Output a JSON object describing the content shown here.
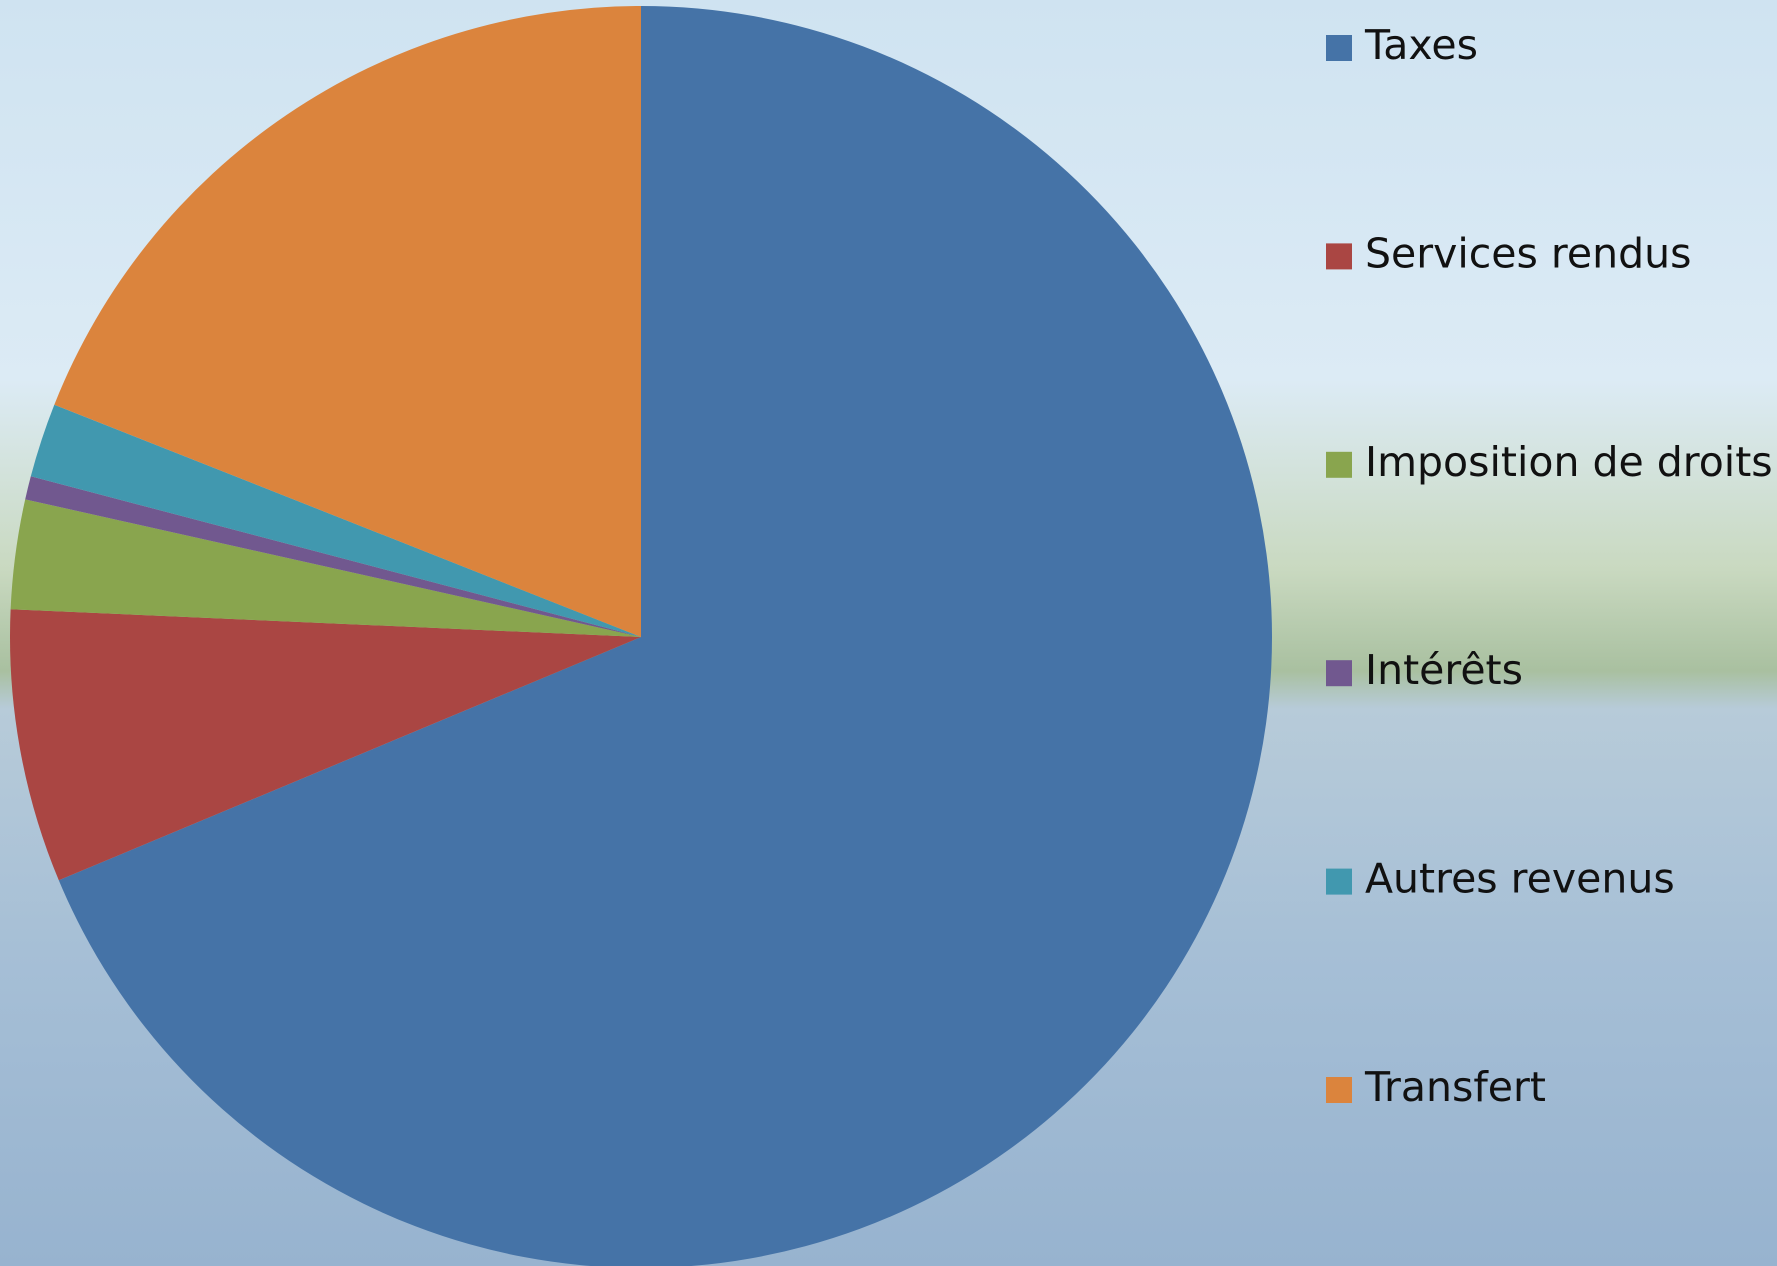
{
  "chart_data": {
    "type": "pie",
    "categories": [
      "Taxes",
      "Services rendus",
      "Imposition de droits",
      "Intérêts",
      "Autres revenus",
      "Transfert"
    ],
    "values": [
      68.7,
      7.0,
      2.8,
      0.6,
      1.9,
      19.0
    ],
    "colors": [
      "#4573a7",
      "#aa4643",
      "#89a54e",
      "#71588f",
      "#4198af",
      "#db843d"
    ],
    "start_angle": 0,
    "direction": "clockwise",
    "legend": "right"
  }
}
